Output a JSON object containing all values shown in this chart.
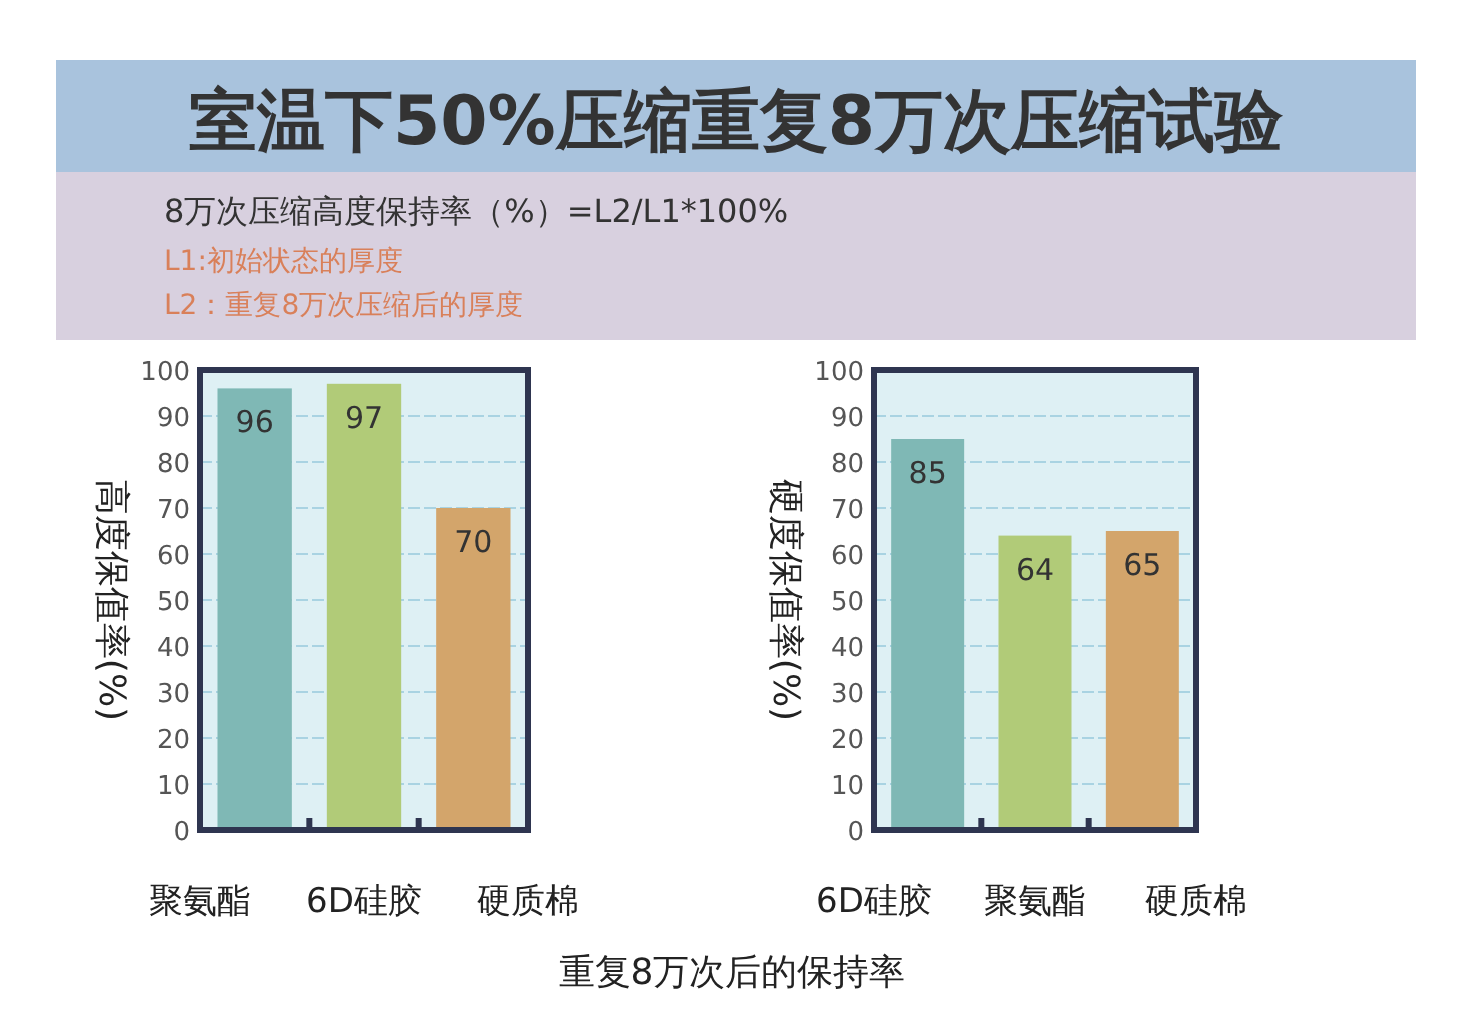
{
  "chart_data": [
    {
      "type": "bar",
      "title": "室温下50%压缩重复8万次压缩试验",
      "subtitle": "8万次压缩高度保持率（%）=L2/L1*100%",
      "annotations": [
        "L1:初始状态的厚度",
        "L2：重复8万次压缩后的厚度",
        "重复8万次后的保持率"
      ],
      "ylabel": "高度保值率(%)",
      "categories": [
        "聚氨酯",
        "6D硅胶",
        "硬质棉"
      ],
      "values": [
        96,
        97,
        70
      ],
      "colors": [
        "#7fb8b5",
        "#b1cb78",
        "#d3a56b"
      ],
      "ylim": [
        0,
        100
      ],
      "yticks": [
        0,
        10,
        20,
        30,
        40,
        50,
        60,
        70,
        80,
        90,
        100
      ],
      "grid": "y",
      "data_labels": true
    },
    {
      "type": "bar",
      "ylabel": "硬度保值率(%)",
      "categories": [
        "6D硅胶",
        "聚氨酯",
        "硬质棉"
      ],
      "values": [
        85,
        64,
        65
      ],
      "colors": [
        "#7fb8b5",
        "#b1cb78",
        "#d3a56b"
      ],
      "ylim": [
        0,
        100
      ],
      "yticks": [
        0,
        10,
        20,
        30,
        40,
        50,
        60,
        70,
        80,
        90,
        100
      ],
      "grid": "y",
      "data_labels": true
    }
  ]
}
